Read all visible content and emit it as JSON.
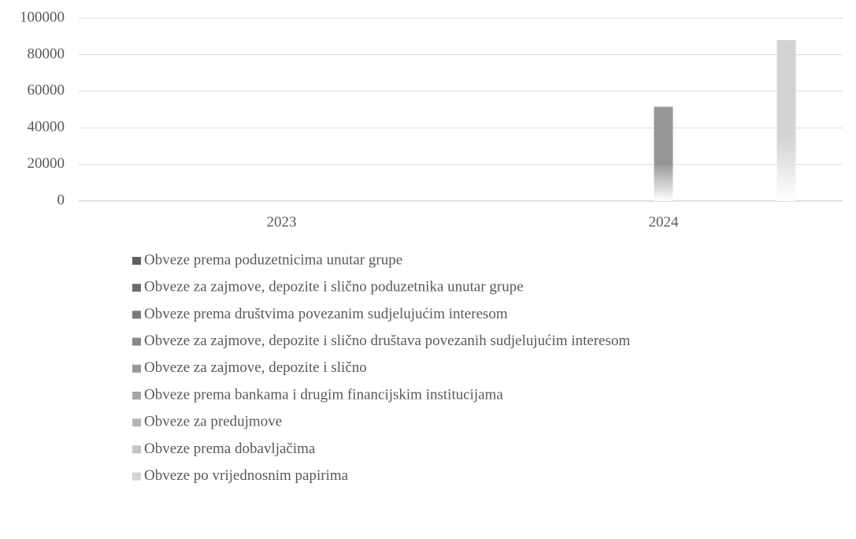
{
  "chart_data": {
    "type": "bar",
    "categories": [
      "2023",
      "2024"
    ],
    "series": [
      {
        "name": "Obveze prema poduzetnicima unutar grupe",
        "color": "#5f5f5f",
        "values": [
          0,
          0
        ]
      },
      {
        "name": "Obveze za zajmove, depozite i slično poduzetnika unutar grupe",
        "color": "#6c6c6c",
        "values": [
          0,
          0
        ]
      },
      {
        "name": "Obveze prema društvima povezanim sudjelujućim interesom",
        "color": "#7a7a7a",
        "values": [
          0,
          0
        ]
      },
      {
        "name": "Obveze za zajmove, depozite i slično društava povezanih sudjelujućim interesom",
        "color": "#888888",
        "values": [
          0,
          0
        ]
      },
      {
        "name": "Obveze za zajmove, depozite i slično",
        "color": "#969696",
        "values": [
          0,
          51500
        ]
      },
      {
        "name": "Obveze prema bankama i drugim financijskim institucijama",
        "color": "#a5a5a5",
        "values": [
          0,
          0
        ]
      },
      {
        "name": "Obveze za predujmove",
        "color": "#b4b4b4",
        "values": [
          0,
          0
        ]
      },
      {
        "name": "Obveze prema dobavljačima",
        "color": "#c3c3c3",
        "values": [
          0,
          0
        ]
      },
      {
        "name": "Obveze po vrijednosnim papirima",
        "color": "#d3d3d3",
        "values": [
          0,
          88000
        ]
      }
    ],
    "ylim": [
      0,
      100000
    ],
    "yticks": [
      0,
      20000,
      40000,
      60000,
      80000,
      100000
    ],
    "grid": true
  }
}
